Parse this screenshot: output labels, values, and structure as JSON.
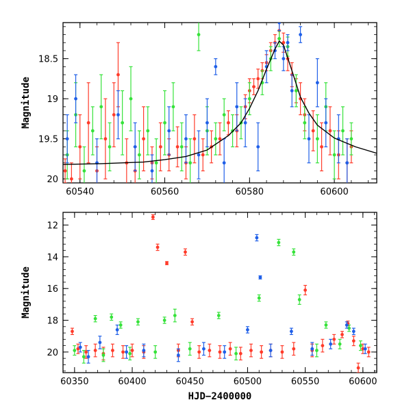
{
  "chart_data": [
    {
      "type": "scatter",
      "panel": "top",
      "ylabel": "Magnitude",
      "xlabel": "",
      "xlim": [
        60536,
        60610
      ],
      "ylim": [
        20.05,
        18.05
      ],
      "y_inverted": true,
      "x_ticks": [
        60540,
        60560,
        60580,
        60600
      ],
      "y_ticks": [
        18.5,
        19,
        19.5,
        20
      ],
      "y_tick_labels": [
        "18.5",
        "19",
        "19.5",
        "20"
      ],
      "series": [
        {
          "color": "#ff3b2a",
          "points": [
            [
              60536.5,
              19.9,
              0.15
            ],
            [
              60538,
              20.0,
              0.2
            ],
            [
              60540,
              19.6,
              0.4
            ],
            [
              60542,
              19.3,
              0.5
            ],
            [
              60544,
              19.9,
              0.3
            ],
            [
              60546,
              19.5,
              0.5
            ],
            [
              60548,
              19.2,
              0.4
            ],
            [
              60549,
              18.7,
              0.4
            ],
            [
              60551,
              19.8,
              0.3
            ],
            [
              60553,
              19.9,
              0.3
            ],
            [
              60555,
              19.5,
              0.4
            ],
            [
              60557,
              19.8,
              0.2
            ],
            [
              60559,
              19.6,
              0.3
            ],
            [
              60561,
              19.7,
              0.2
            ],
            [
              60563,
              19.6,
              0.25
            ],
            [
              60565,
              19.8,
              0.2
            ],
            [
              60567,
              19.5,
              0.3
            ],
            [
              60569,
              19.7,
              0.2
            ],
            [
              60571,
              19.6,
              0.2
            ],
            [
              60573,
              19.5,
              0.2
            ],
            [
              60575,
              19.3,
              0.15
            ],
            [
              60577,
              19.4,
              0.2
            ],
            [
              60579,
              19.1,
              0.15
            ],
            [
              60580,
              18.9,
              0.15
            ],
            [
              60581,
              18.85,
              0.1
            ],
            [
              60582,
              18.75,
              0.12
            ],
            [
              60583,
              18.65,
              0.1
            ],
            [
              60584,
              18.55,
              0.1
            ],
            [
              60585,
              18.4,
              0.1
            ],
            [
              60586,
              18.3,
              0.1
            ],
            [
              60587,
              18.15,
              0.1
            ],
            [
              60588,
              18.3,
              0.12
            ],
            [
              60589,
              18.5,
              0.15
            ],
            [
              60590,
              18.7,
              0.15
            ],
            [
              60591,
              18.9,
              0.15
            ],
            [
              60592,
              19.0,
              0.2
            ],
            [
              60593,
              19.2,
              0.2
            ],
            [
              60595,
              19.4,
              0.25
            ],
            [
              60597,
              19.6,
              0.3
            ],
            [
              60599,
              19.4,
              0.3
            ],
            [
              60601,
              19.7,
              0.3
            ],
            [
              60603,
              19.8,
              0.3
            ],
            [
              60604,
              19.6,
              0.2
            ]
          ]
        },
        {
          "color": "#36e23a",
          "points": [
            [
              60537,
              19.7,
              0.3
            ],
            [
              60539,
              19.2,
              0.4
            ],
            [
              60541,
              19.9,
              0.3
            ],
            [
              60543,
              19.4,
              0.3
            ],
            [
              60545,
              19.1,
              0.4
            ],
            [
              60547,
              19.6,
              0.3
            ],
            [
              60550,
              19.3,
              0.4
            ],
            [
              60552,
              19.0,
              0.4
            ],
            [
              60554,
              19.7,
              0.3
            ],
            [
              60556,
              19.4,
              0.3
            ],
            [
              60558,
              19.8,
              0.3
            ],
            [
              60560,
              19.3,
              0.4
            ],
            [
              60562,
              19.1,
              0.3
            ],
            [
              60564,
              19.6,
              0.3
            ],
            [
              60566,
              19.8,
              0.3
            ],
            [
              60568,
              18.2,
              0.2
            ],
            [
              60570,
              19.4,
              0.3
            ],
            [
              60572,
              19.5,
              0.2
            ],
            [
              60574,
              19.2,
              0.2
            ],
            [
              60576,
              19.4,
              0.2
            ],
            [
              60578,
              19.3,
              0.2
            ],
            [
              60580,
              19.0,
              0.2
            ],
            [
              60583,
              18.8,
              0.15
            ],
            [
              60585,
              18.5,
              0.15
            ],
            [
              60587,
              18.25,
              0.1
            ],
            [
              60589,
              18.35,
              0.12
            ],
            [
              60591,
              18.9,
              0.2
            ],
            [
              60593,
              19.3,
              0.2
            ],
            [
              60596,
              19.5,
              0.3
            ],
            [
              60598,
              19.1,
              0.3
            ],
            [
              60600,
              19.7,
              0.3
            ],
            [
              60602,
              19.4,
              0.3
            ],
            [
              60604,
              19.5,
              0.2
            ]
          ]
        },
        {
          "color": "#1f5fe8",
          "points": [
            [
              60537,
              19.5,
              0.3
            ],
            [
              60539,
              19.0,
              0.3
            ],
            [
              60544,
              19.8,
              0.3
            ],
            [
              60549,
              19.2,
              0.3
            ],
            [
              60553,
              19.6,
              0.3
            ],
            [
              60557,
              19.9,
              0.2
            ],
            [
              60561,
              19.4,
              0.3
            ],
            [
              60565,
              19.5,
              0.3
            ],
            [
              60568,
              19.7,
              0.3
            ],
            [
              60570,
              19.3,
              0.3
            ],
            [
              60572,
              18.6,
              0.1
            ],
            [
              60574,
              19.8,
              0.3
            ],
            [
              60577,
              19.1,
              0.3
            ],
            [
              60579,
              19.3,
              0.3
            ],
            [
              60582,
              19.6,
              0.3
            ],
            [
              60584,
              18.6,
              0.2
            ],
            [
              60586,
              18.4,
              0.1
            ],
            [
              60587,
              18.05,
              0.1
            ],
            [
              60588,
              18.5,
              0.15
            ],
            [
              60589,
              18.3,
              0.1
            ],
            [
              60590,
              18.9,
              0.2
            ],
            [
              60592,
              18.2,
              0.1
            ],
            [
              60594,
              19.5,
              0.3
            ],
            [
              60596,
              18.8,
              0.3
            ],
            [
              60598,
              19.3,
              0.3
            ],
            [
              60601,
              19.5,
              0.3
            ],
            [
              60603,
              19.8,
              0.3
            ]
          ]
        }
      ],
      "model_curve": [
        [
          60536,
          19.82
        ],
        [
          60545,
          19.81
        ],
        [
          60555,
          19.79
        ],
        [
          60560,
          19.76
        ],
        [
          60565,
          19.72
        ],
        [
          60570,
          19.64
        ],
        [
          60575,
          19.46
        ],
        [
          60578,
          19.3
        ],
        [
          60580,
          19.12
        ],
        [
          60582,
          18.9
        ],
        [
          60584,
          18.63
        ],
        [
          60586,
          18.38
        ],
        [
          60587,
          18.28
        ],
        [
          60588,
          18.33
        ],
        [
          60590,
          18.65
        ],
        [
          60592,
          18.98
        ],
        [
          60594,
          19.18
        ],
        [
          60596,
          19.33
        ],
        [
          60600,
          19.49
        ],
        [
          60605,
          19.6
        ],
        [
          60610,
          19.68
        ]
      ]
    },
    {
      "type": "scatter",
      "panel": "bottom",
      "ylabel": "Magnitude",
      "xlabel": "HJD−2400000",
      "xlim": [
        60340,
        60612
      ],
      "ylim": [
        21.3,
        11.2
      ],
      "y_inverted": true,
      "x_ticks": [
        60350,
        60400,
        60450,
        60500,
        60550,
        60600
      ],
      "y_ticks": [
        12,
        14,
        16,
        18,
        20
      ],
      "y_tick_labels": [
        "12",
        "14",
        "16",
        "18",
        "20"
      ],
      "series": [
        {
          "color": "#ff3b2a",
          "points": [
            [
              60348,
              18.7,
              0.2
            ],
            [
              60353,
              19.8,
              0.3
            ],
            [
              60360,
              20.0,
              0.4
            ],
            [
              60368,
              19.9,
              0.4
            ],
            [
              60375,
              20.1,
              0.4
            ],
            [
              60383,
              19.9,
              0.4
            ],
            [
              60392,
              20.0,
              0.4
            ],
            [
              60400,
              19.9,
              0.4
            ],
            [
              60410,
              20.0,
              0.4
            ],
            [
              60418,
              11.5,
              0.15
            ],
            [
              60422,
              13.4,
              0.2
            ],
            [
              60430,
              14.4,
              0.1
            ],
            [
              60440,
              19.9,
              0.4
            ],
            [
              60446,
              13.7,
              0.2
            ],
            [
              60452,
              18.1,
              0.2
            ],
            [
              60458,
              20.0,
              0.4
            ],
            [
              60467,
              19.9,
              0.4
            ],
            [
              60476,
              20.0,
              0.4
            ],
            [
              60485,
              19.8,
              0.4
            ],
            [
              60494,
              20.1,
              0.4
            ],
            [
              60503,
              19.9,
              0.4
            ],
            [
              60512,
              20.0,
              0.4
            ],
            [
              60520,
              19.9,
              0.4
            ],
            [
              60530,
              20.0,
              0.4
            ],
            [
              60540,
              19.8,
              0.4
            ],
            [
              60550,
              16.1,
              0.3
            ],
            [
              60556,
              19.9,
              0.4
            ],
            [
              60565,
              19.6,
              0.4
            ],
            [
              60575,
              19.2,
              0.3
            ],
            [
              60582,
              18.9,
              0.2
            ],
            [
              60587,
              18.2,
              0.15
            ],
            [
              60592,
              19.3,
              0.3
            ],
            [
              60596,
              21.0,
              0.3
            ],
            [
              60600,
              19.8,
              0.3
            ],
            [
              60605,
              20.0,
              0.3
            ]
          ]
        },
        {
          "color": "#36e23a",
          "points": [
            [
              60350,
              19.9,
              0.3
            ],
            [
              60358,
              20.3,
              0.4
            ],
            [
              60368,
              17.9,
              0.2
            ],
            [
              60375,
              20.2,
              0.4
            ],
            [
              60382,
              17.8,
              0.2
            ],
            [
              60390,
              18.3,
              0.2
            ],
            [
              60398,
              20.1,
              0.4
            ],
            [
              60405,
              18.1,
              0.2
            ],
            [
              60420,
              20.0,
              0.4
            ],
            [
              60428,
              18.0,
              0.2
            ],
            [
              60437,
              17.7,
              0.4
            ],
            [
              60450,
              19.8,
              0.4
            ],
            [
              60475,
              17.7,
              0.2
            ],
            [
              60490,
              20.1,
              0.4
            ],
            [
              60510,
              16.6,
              0.2
            ],
            [
              60527,
              13.1,
              0.2
            ],
            [
              60540,
              13.7,
              0.2
            ],
            [
              60545,
              16.7,
              0.3
            ],
            [
              60560,
              19.9,
              0.4
            ],
            [
              60568,
              18.3,
              0.2
            ],
            [
              60580,
              19.5,
              0.3
            ],
            [
              60588,
              18.5,
              0.2
            ],
            [
              60598,
              19.6,
              0.3
            ]
          ]
        },
        {
          "color": "#1f5fe8",
          "points": [
            [
              60355,
              19.7,
              0.3
            ],
            [
              60362,
              20.3,
              0.4
            ],
            [
              60372,
              19.4,
              0.4
            ],
            [
              60387,
              18.6,
              0.3
            ],
            [
              60395,
              20.0,
              0.4
            ],
            [
              60410,
              19.9,
              0.4
            ],
            [
              60440,
              20.2,
              0.4
            ],
            [
              60462,
              19.8,
              0.4
            ],
            [
              60480,
              20.0,
              0.4
            ],
            [
              60500,
              18.6,
              0.2
            ],
            [
              60508,
              12.8,
              0.2
            ],
            [
              60511,
              15.3,
              0.1
            ],
            [
              60520,
              19.9,
              0.4
            ],
            [
              60538,
              18.7,
              0.2
            ],
            [
              60556,
              19.8,
              0.4
            ],
            [
              60572,
              19.5,
              0.3
            ],
            [
              60586,
              18.3,
              0.2
            ],
            [
              60592,
              18.7,
              0.2
            ],
            [
              60602,
              19.8,
              0.3
            ]
          ]
        }
      ]
    }
  ]
}
